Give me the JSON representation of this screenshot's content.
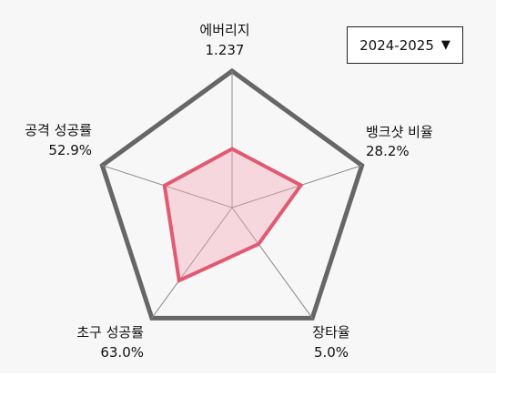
{
  "season_selector": {
    "selected": "2024-2025",
    "caret": "▼"
  },
  "chart_data": {
    "type": "radar",
    "axes": [
      {
        "label": "에버리지",
        "value_text": "1.237",
        "fraction": 0.43
      },
      {
        "label": "뱅크샷 비율",
        "value_text": "28.2%",
        "fraction": 0.53
      },
      {
        "label": "장타율",
        "value_text": "5.0%",
        "fraction": 0.33
      },
      {
        "label": "초구 성공률",
        "value_text": "63.0%",
        "fraction": 0.66
      },
      {
        "label": "공격 성공률",
        "value_text": "52.9%",
        "fraction": 0.52
      }
    ],
    "colors": {
      "outline": "#666666",
      "spoke": "#888888",
      "series_line": "#e05a72",
      "series_fill": "#f2a7b6"
    }
  }
}
